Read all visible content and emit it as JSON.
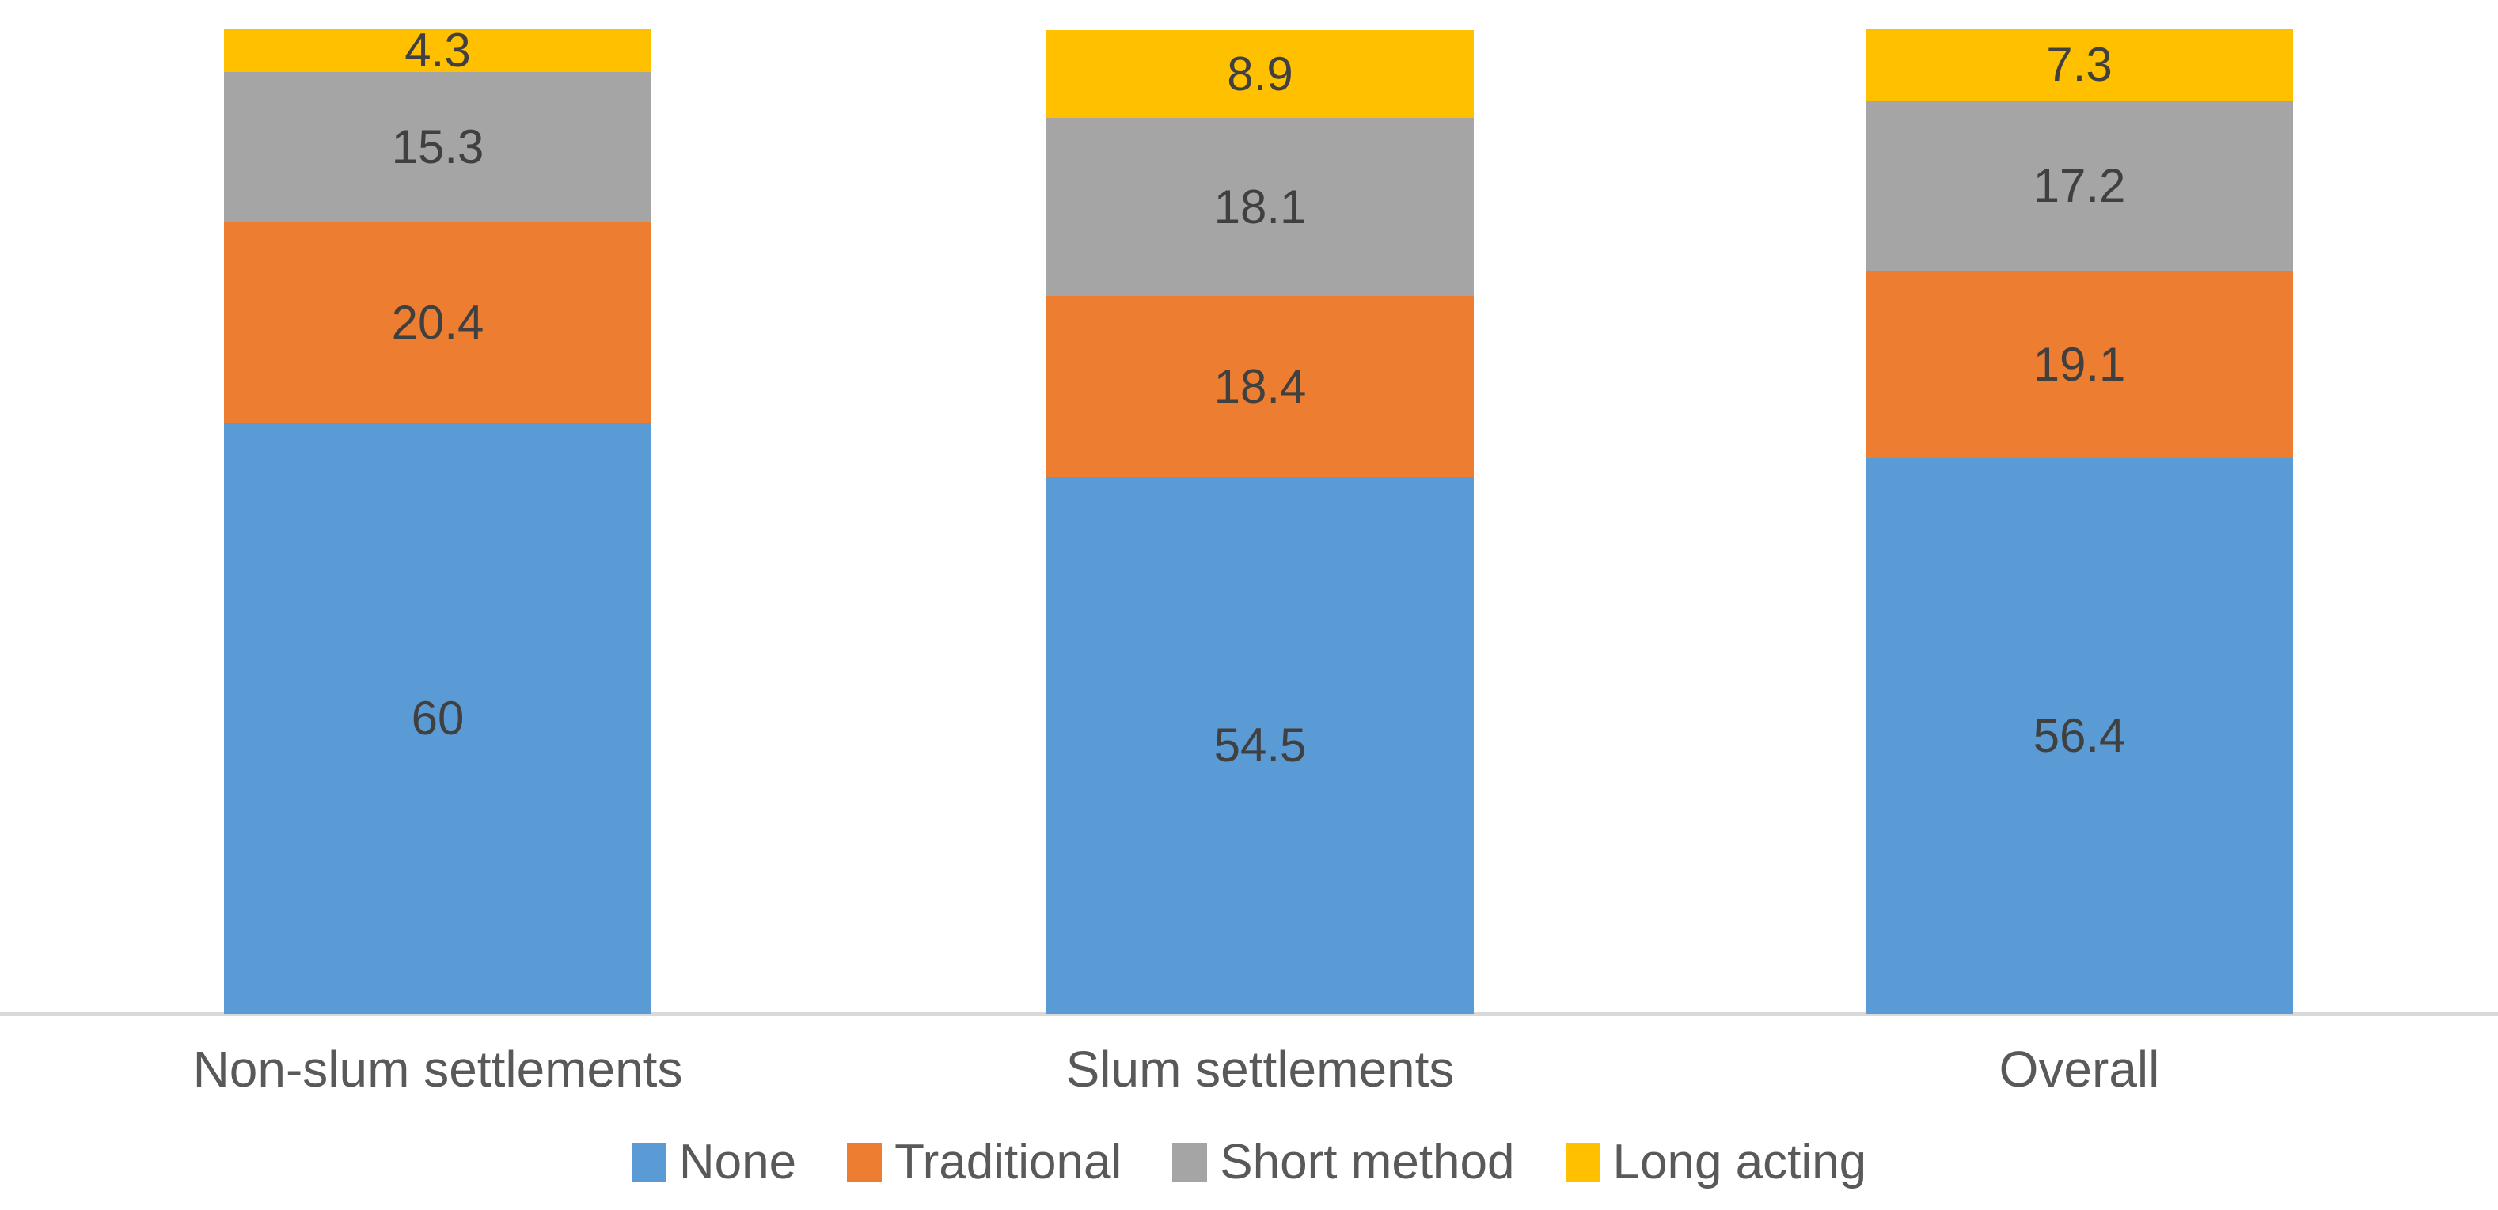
{
  "chart_data": {
    "type": "bar",
    "stacked": true,
    "title": "",
    "xlabel": "",
    "ylabel": "",
    "ylim": [
      0,
      100
    ],
    "grid": false,
    "legend_position": "bottom",
    "value_labels_shown": true,
    "categories": [
      "Non-slum settlements",
      "Slum settlements",
      "Overall"
    ],
    "series": [
      {
        "name": "None",
        "color": "#5B9BD5",
        "values": [
          60,
          54.5,
          56.4
        ]
      },
      {
        "name": "Traditional",
        "color": "#ED7D31",
        "values": [
          20.4,
          18.4,
          19.1
        ]
      },
      {
        "name": "Short method",
        "color": "#A5A5A5",
        "values": [
          15.3,
          18.1,
          17.2
        ]
      },
      {
        "name": "Long acting",
        "color": "#FFC000",
        "values": [
          4.3,
          8.9,
          7.3
        ]
      }
    ],
    "axis_line_color": "#D9D9D9",
    "label_color": "#404040",
    "axis_text_color": "#595959"
  }
}
